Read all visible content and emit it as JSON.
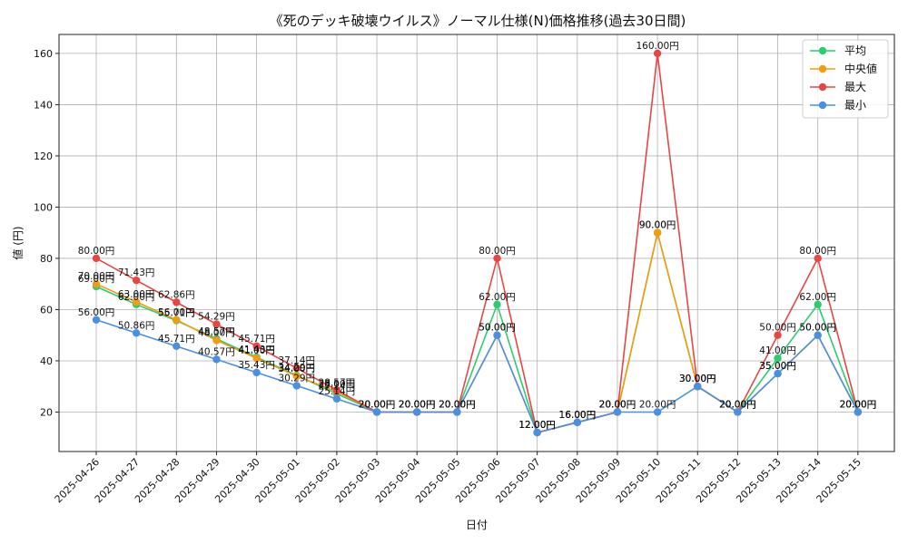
{
  "chart_data": {
    "type": "line",
    "title": "《死のデッキ破壊ウイルス》ノーマル仕様(N)価格推移(過去30日間)",
    "xlabel": "日付",
    "ylabel": "値 (円)",
    "value_suffix": "円",
    "ylim": [
      4.6,
      167.4
    ],
    "yticks": [
      20,
      40,
      60,
      80,
      100,
      120,
      140,
      160
    ],
    "grid": true,
    "legend_position": "top-right",
    "categories": [
      "2025-04-26",
      "2025-04-27",
      "2025-04-28",
      "2025-04-29",
      "2025-04-30",
      "2025-05-01",
      "2025-05-02",
      "2025-05-03",
      "2025-05-04",
      "2025-05-05",
      "2025-05-06",
      "2025-05-07",
      "2025-05-08",
      "2025-05-09",
      "2025-05-10",
      "2025-05-11",
      "2025-05-12",
      "2025-05-13",
      "2025-05-14",
      "2025-05-15"
    ],
    "series": [
      {
        "name": "平均",
        "color": "#2ecc71",
        "values": [
          69.0,
          62.0,
          55.71,
          48.57,
          41.43,
          34.29,
          27.14,
          20.0,
          20.0,
          20.0,
          62.0,
          12.0,
          16.0,
          20.0,
          90.0,
          30.0,
          20.0,
          41.0,
          62.0,
          20.0
        ]
      },
      {
        "name": "中央値",
        "color": "#f39c12",
        "values": [
          70.0,
          63.0,
          56.0,
          48.0,
          41.0,
          34.0,
          28.0,
          20.0,
          20.0,
          20.0,
          50.0,
          12.0,
          16.0,
          20.0,
          90.0,
          30.0,
          20.0,
          35.0,
          50.0,
          20.0
        ]
      },
      {
        "name": "最大",
        "color": "#e84545",
        "values": [
          80.0,
          71.43,
          62.86,
          54.29,
          45.71,
          37.14,
          28.57,
          20.0,
          20.0,
          20.0,
          80.0,
          12.0,
          16.0,
          20.0,
          160.0,
          30.0,
          20.0,
          50.0,
          80.0,
          20.0
        ]
      },
      {
        "name": "最小",
        "color": "#4a90e2",
        "values": [
          56.0,
          50.86,
          45.71,
          40.57,
          35.43,
          30.29,
          25.14,
          20.0,
          20.0,
          20.0,
          50.0,
          12.0,
          16.0,
          20.0,
          20.0,
          30.0,
          20.0,
          35.0,
          50.0,
          20.0
        ]
      }
    ]
  }
}
